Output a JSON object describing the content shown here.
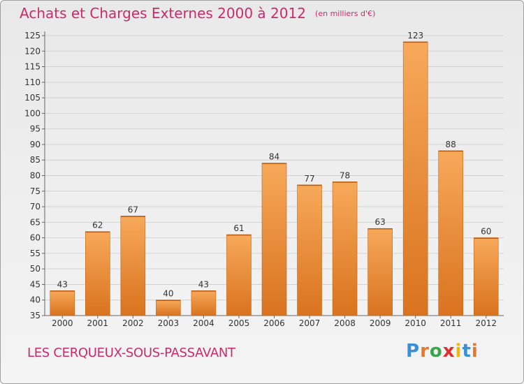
{
  "header": {
    "title": "Achats et Charges Externes 2000 à 2012",
    "unit": "(en milliers d'€)"
  },
  "footer": {
    "commune": "LES CERQUEUX-SOUS-PASSAVANT"
  },
  "logo": {
    "letters": [
      "P",
      "r",
      "o",
      "x",
      "i",
      "t",
      "i"
    ],
    "colors": [
      "#3a8fd6",
      "#e8772a",
      "#3aa64a",
      "#e0302e",
      "#f2b705",
      "#3a8fd6",
      "#e8772a"
    ]
  },
  "colors": {
    "bar_light": "#f7a95a",
    "bar_dark": "#d9731e",
    "accent": "#cc2a6a"
  },
  "chart_data": {
    "type": "bar",
    "title": "Achats et Charges Externes 2000 à 2012",
    "subtitle": "(en milliers d'€)",
    "categories": [
      "2000",
      "2001",
      "2002",
      "2003",
      "2004",
      "2005",
      "2006",
      "2007",
      "2008",
      "2009",
      "2010",
      "2011",
      "2012"
    ],
    "values": [
      43,
      62,
      67,
      40,
      43,
      61,
      84,
      77,
      78,
      63,
      123,
      88,
      60
    ],
    "ylim": [
      35,
      125
    ],
    "yticks": [
      35,
      40,
      45,
      50,
      55,
      60,
      65,
      70,
      75,
      80,
      85,
      90,
      95,
      100,
      105,
      110,
      115,
      120,
      125
    ],
    "grid": true
  }
}
